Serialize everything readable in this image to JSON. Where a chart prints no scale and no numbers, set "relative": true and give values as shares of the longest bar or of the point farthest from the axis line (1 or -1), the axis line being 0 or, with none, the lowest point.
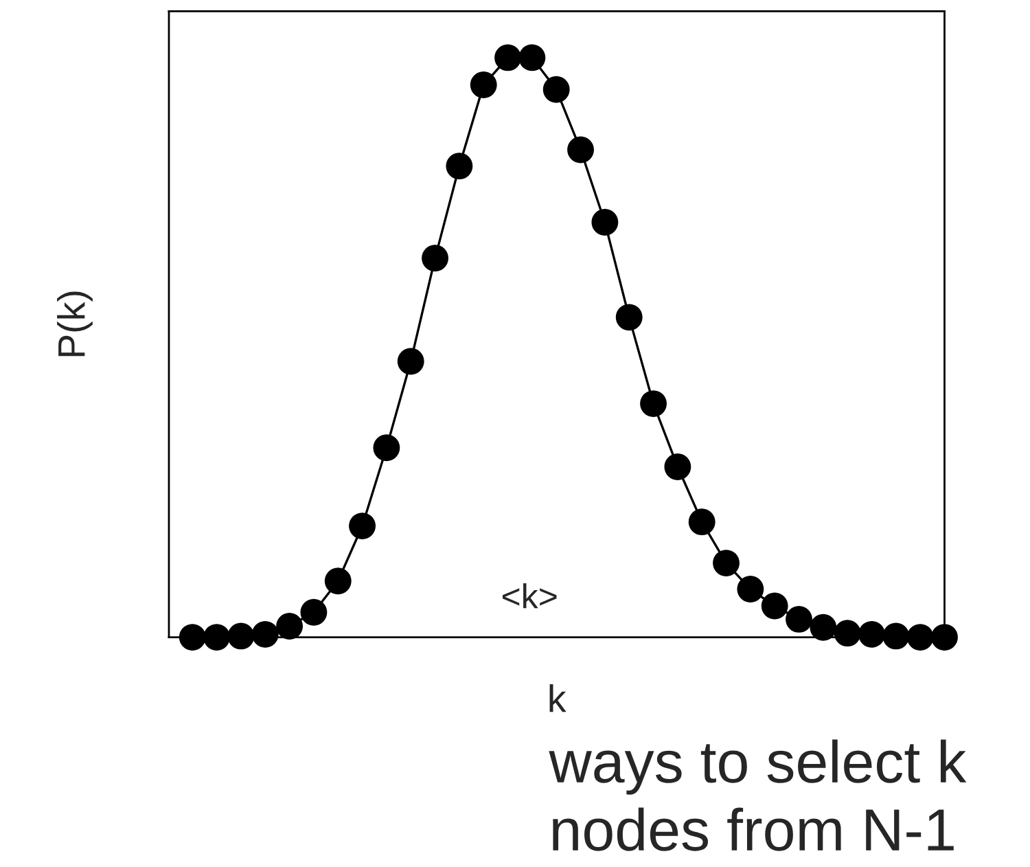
{
  "chart_data": {
    "type": "line",
    "xlabel": "k",
    "ylabel": "P(k)",
    "relative": true,
    "marker": "circle",
    "line_style": "solid",
    "categories": [
      null,
      null,
      null,
      null,
      null,
      null,
      null,
      null,
      null,
      null,
      null,
      null,
      null,
      null,
      null,
      null,
      null,
      null,
      null,
      null,
      null,
      null,
      null,
      null,
      null,
      null,
      null,
      null,
      null,
      null,
      null,
      null
    ],
    "series": [
      {
        "color": "#000000",
        "values": [
          0,
          0,
          0.002,
          0.005,
          0.019,
          0.043,
          0.097,
          0.192,
          0.327,
          0.476,
          0.654,
          0.813,
          0.953,
          1,
          1,
          0.945,
          0.841,
          0.716,
          0.552,
          0.403,
          0.294,
          0.199,
          0.128,
          0.083,
          0.054,
          0.031,
          0.017,
          0.007,
          0.005,
          0.002,
          0,
          0
        ]
      }
    ],
    "annotations": [
      "<k>",
      "ways to select k\nnodes from N-1"
    ]
  }
}
